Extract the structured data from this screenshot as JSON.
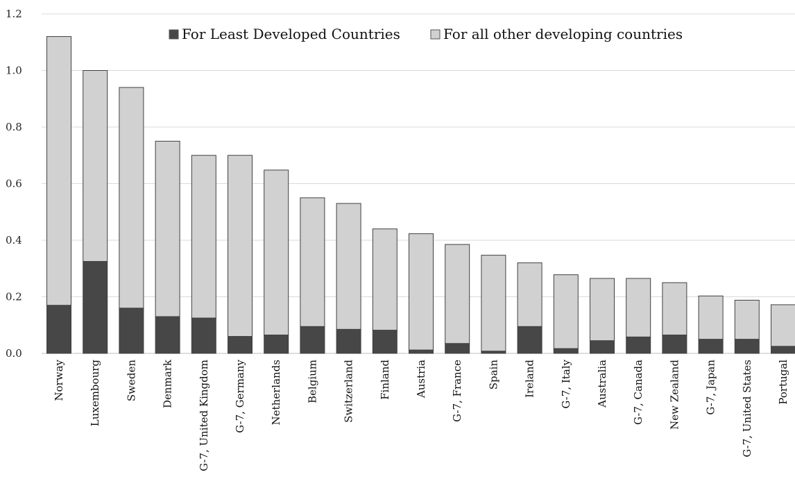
{
  "chart_data": {
    "type": "bar",
    "stacked": true,
    "title": "",
    "xlabel": "",
    "ylabel": "",
    "ylim": [
      0,
      1.2
    ],
    "yticks": [
      "0.0",
      "0.2",
      "0.4",
      "0.6",
      "0.8",
      "1.0",
      "1.2"
    ],
    "grid": true,
    "legend_position": "top",
    "categories": [
      "Norway",
      "Luxembourg",
      "Sweden",
      "Denmark",
      "G-7, United Kingdom",
      "G-7, Germany",
      "Netherlands",
      "Belgium",
      "Switzerland",
      "Finland",
      "Austria",
      "G-7, France",
      "Spain",
      "Ireland",
      "G-7, Italy",
      "Australia",
      "G-7, Canada",
      "New Zealand",
      "G-7, Japan",
      "G-7, United States",
      "Portugal"
    ],
    "series": [
      {
        "name": "For Least Developed Countries",
        "color": "#474747",
        "values": [
          0.17,
          0.325,
          0.16,
          0.13,
          0.125,
          0.06,
          0.065,
          0.095,
          0.085,
          0.082,
          0.012,
          0.035,
          0.008,
          0.095,
          0.017,
          0.045,
          0.058,
          0.065,
          0.05,
          0.05,
          0.025
        ]
      },
      {
        "name": "For all other developing countries",
        "color": "#d1d1d1",
        "values": [
          0.95,
          0.675,
          0.78,
          0.62,
          0.575,
          0.64,
          0.583,
          0.455,
          0.445,
          0.358,
          0.411,
          0.35,
          0.339,
          0.225,
          0.261,
          0.22,
          0.207,
          0.185,
          0.153,
          0.138,
          0.147
        ]
      }
    ]
  }
}
